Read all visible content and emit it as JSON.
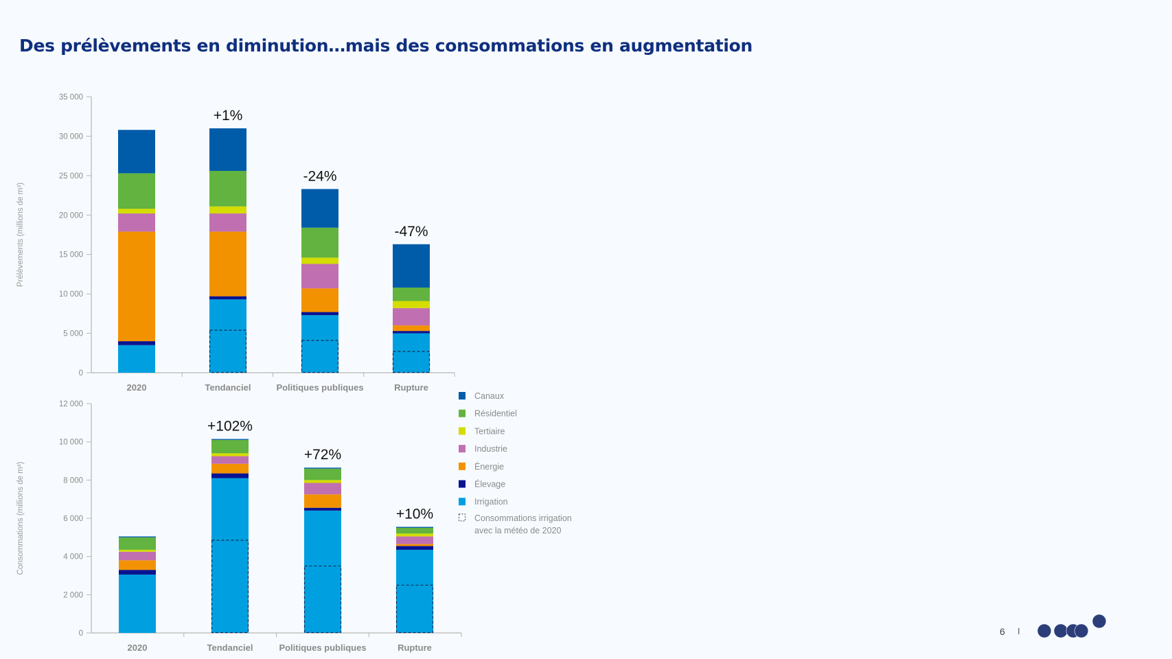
{
  "title": "Des prélèvements en diminution…mais des consommations en augmentation",
  "footer": {
    "page_number": "6",
    "separator": "I",
    "logo_color": "#2c3e7a"
  },
  "legend": {
    "items": [
      {
        "label": "Canaux",
        "color": "#005ca8"
      },
      {
        "label": "Résidentiel",
        "color": "#62b33f"
      },
      {
        "label": "Tertiaire",
        "color": "#d4dc00"
      },
      {
        "label": "Industrie",
        "color": "#c070b0"
      },
      {
        "label": "Énergie",
        "color": "#f39200"
      },
      {
        "label": "Élevage",
        "color": "#0a1490"
      },
      {
        "label": "Irrigation",
        "color": "#00a0e0"
      }
    ],
    "dashed_label_line1": "Consommations irrigation",
    "dashed_label_line2": "avec la météo de 2020",
    "placement": "right"
  },
  "chart_data": [
    {
      "type": "bar",
      "stacked": true,
      "ylabel": "Prélèvements (millions de m³)",
      "ylim": [
        0,
        35000
      ],
      "yticks": [
        "0",
        "5 000",
        "10 000",
        "15 000",
        "20 000",
        "25 000",
        "30 000",
        "35 000"
      ],
      "categories": [
        "2020",
        "Tendanciel",
        "Politiques publiques",
        "Rupture"
      ],
      "annotations": [
        "",
        "+1%",
        "-24%",
        "-47%"
      ],
      "series": [
        {
          "name": "Irrigation",
          "values": [
            3500,
            9300,
            7300,
            5000
          ]
        },
        {
          "name": "Élevage",
          "values": [
            500,
            400,
            400,
            300
          ]
        },
        {
          "name": "Énergie",
          "values": [
            13900,
            8200,
            3000,
            700
          ]
        },
        {
          "name": "Industrie",
          "values": [
            2300,
            2300,
            3100,
            2200
          ]
        },
        {
          "name": "Tertiaire",
          "values": [
            600,
            900,
            800,
            900
          ]
        },
        {
          "name": "Résidentiel",
          "values": [
            4500,
            4500,
            3800,
            1700
          ]
        },
        {
          "name": "Canaux",
          "values": [
            5500,
            5400,
            4900,
            5500
          ]
        }
      ],
      "irrigation_meteo_2020": [
        null,
        5400,
        4100,
        2700
      ]
    },
    {
      "type": "bar",
      "stacked": true,
      "ylabel": "Consommations (millions de m³)",
      "ylim": [
        0,
        12000
      ],
      "yticks": [
        "0",
        "2 000",
        "4 000",
        "6 000",
        "8 000",
        "10 000",
        "12 000"
      ],
      "categories": [
        "2020",
        "Tendanciel",
        "Politiques publiques",
        "Rupture"
      ],
      "annotations": [
        "",
        "+102%",
        "+72%",
        "+10%"
      ],
      "series": [
        {
          "name": "Irrigation",
          "values": [
            3050,
            8100,
            6400,
            4350
          ]
        },
        {
          "name": "Élevage",
          "values": [
            250,
            250,
            150,
            200
          ]
        },
        {
          "name": "Énergie",
          "values": [
            500,
            500,
            700,
            100
          ]
        },
        {
          "name": "Industrie",
          "values": [
            450,
            400,
            600,
            400
          ]
        },
        {
          "name": "Tertiaire",
          "values": [
            100,
            150,
            150,
            150
          ]
        },
        {
          "name": "Résidentiel",
          "values": [
            650,
            700,
            600,
            300
          ]
        },
        {
          "name": "Canaux",
          "values": [
            50,
            50,
            50,
            50
          ]
        }
      ],
      "irrigation_meteo_2020": [
        null,
        4850,
        3500,
        2500
      ]
    }
  ]
}
